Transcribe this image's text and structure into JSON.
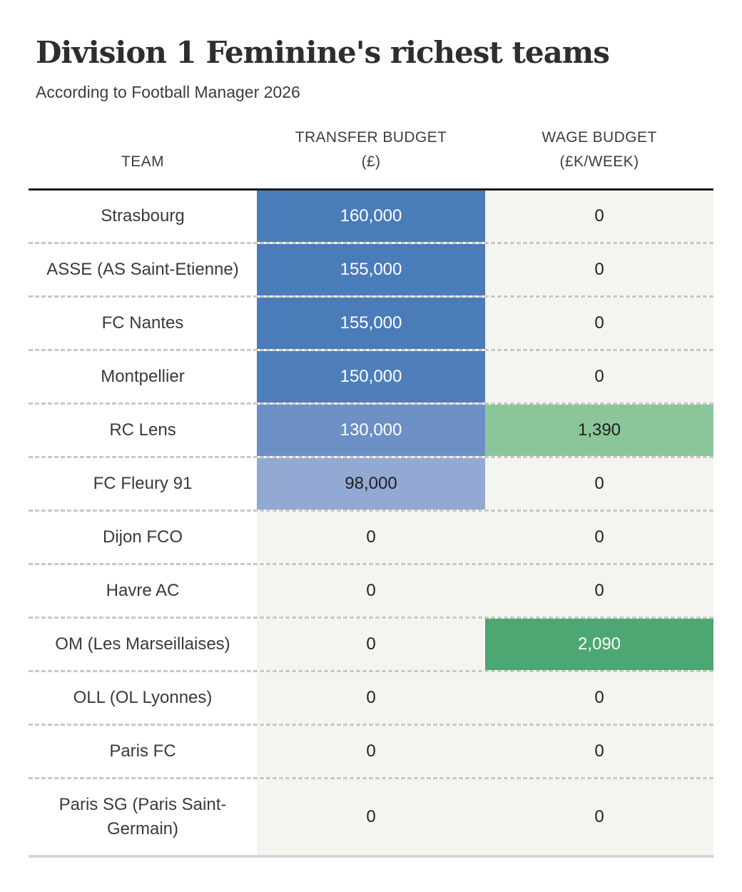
{
  "title": "Division 1 Feminine's richest teams",
  "subtitle": "According to Football Manager 2026",
  "table": {
    "headers": [
      {
        "line1": "",
        "line2": "TEAM"
      },
      {
        "line1": "TRANSFER BUDGET",
        "line2": "(£)"
      },
      {
        "line1": "WAGE BUDGET",
        "line2": "(£K/WEEK)"
      }
    ],
    "rows": [
      {
        "team": "Strasbourg",
        "transfer": {
          "value": "160,000",
          "bg": "#4a7cba",
          "color": "#ffffff"
        },
        "wage": {
          "value": "0",
          "bg": "#f5f5f0",
          "color": "#1f1f1f"
        }
      },
      {
        "team": "ASSE (AS Saint-Etienne)",
        "transfer": {
          "value": "155,000",
          "bg": "#4a7cba",
          "color": "#ffffff"
        },
        "wage": {
          "value": "0",
          "bg": "#f5f5f0",
          "color": "#1f1f1f"
        }
      },
      {
        "team": "FC Nantes",
        "transfer": {
          "value": "155,000",
          "bg": "#4a7cba",
          "color": "#ffffff"
        },
        "wage": {
          "value": "0",
          "bg": "#f5f5f0",
          "color": "#1f1f1f"
        }
      },
      {
        "team": "Montpellier",
        "transfer": {
          "value": "150,000",
          "bg": "#4e7fbb",
          "color": "#ffffff"
        },
        "wage": {
          "value": "0",
          "bg": "#f5f5f0",
          "color": "#1f1f1f"
        }
      },
      {
        "team": "RC Lens",
        "transfer": {
          "value": "130,000",
          "bg": "#6c90c6",
          "color": "#ffffff"
        },
        "wage": {
          "value": "1,390",
          "bg": "#8ac69a",
          "color": "#1f1f1f"
        }
      },
      {
        "team": "FC Fleury 91",
        "transfer": {
          "value": "98,000",
          "bg": "#92a9d3",
          "color": "#1f1f1f"
        },
        "wage": {
          "value": "0",
          "bg": "#f5f5f0",
          "color": "#1f1f1f"
        }
      },
      {
        "team": "Dijon FCO",
        "transfer": {
          "value": "0",
          "bg": "#f5f5f0",
          "color": "#1f1f1f"
        },
        "wage": {
          "value": "0",
          "bg": "#f5f5f0",
          "color": "#1f1f1f"
        }
      },
      {
        "team": "Havre AC",
        "transfer": {
          "value": "0",
          "bg": "#f5f5f0",
          "color": "#1f1f1f"
        },
        "wage": {
          "value": "0",
          "bg": "#f5f5f0",
          "color": "#1f1f1f"
        }
      },
      {
        "team": "OM (Les Marseillaises)",
        "transfer": {
          "value": "0",
          "bg": "#f5f5f0",
          "color": "#1f1f1f"
        },
        "wage": {
          "value": "2,090",
          "bg": "#4ca773",
          "color": "#ffffff"
        }
      },
      {
        "team": "OLL (OL Lyonnes)",
        "transfer": {
          "value": "0",
          "bg": "#f5f5f0",
          "color": "#1f1f1f"
        },
        "wage": {
          "value": "0",
          "bg": "#f5f5f0",
          "color": "#1f1f1f"
        }
      },
      {
        "team": "Paris FC",
        "transfer": {
          "value": "0",
          "bg": "#f5f5f0",
          "color": "#1f1f1f"
        },
        "wage": {
          "value": "0",
          "bg": "#f5f5f0",
          "color": "#1f1f1f"
        }
      },
      {
        "team": "Paris SG (Paris Saint-Germain)",
        "transfer": {
          "value": "0",
          "bg": "#f5f5f0",
          "color": "#1f1f1f"
        },
        "wage": {
          "value": "0",
          "bg": "#f5f5f0",
          "color": "#1f1f1f"
        }
      }
    ]
  },
  "colors": {
    "title_text": "#2e2e2e",
    "subtitle_text": "#3c3c3c",
    "header_text": "#3d3d3d",
    "team_text": "#3a3a3a",
    "value_text_dark": "#1f1f1f",
    "value_text_light": "#ffffff",
    "heatmap_blue_max": "#4a7cba",
    "heatmap_blue_mid": "#6c90c6",
    "heatmap_blue_low": "#92a9d3",
    "heatmap_green_max": "#4ca773",
    "heatmap_green_mid": "#8ac69a",
    "cell_zero_bg": "#f5f5f0",
    "header_rule": "#1b1b1b",
    "row_divider": "#c9c9c9",
    "bottom_rule": "#d6d6d6"
  },
  "chart_data": {
    "type": "table",
    "title": "Division 1 Feminine's richest teams",
    "subtitle": "According to Football Manager 2026",
    "columns": [
      "TEAM",
      "TRANSFER BUDGET (£)",
      "WAGE BUDGET (£K/WEEK)"
    ],
    "rows": [
      {
        "team": "Strasbourg",
        "transfer_budget_gbp": 160000,
        "wage_budget_gbp_k_per_week": 0
      },
      {
        "team": "ASSE (AS Saint-Etienne)",
        "transfer_budget_gbp": 155000,
        "wage_budget_gbp_k_per_week": 0
      },
      {
        "team": "FC Nantes",
        "transfer_budget_gbp": 155000,
        "wage_budget_gbp_k_per_week": 0
      },
      {
        "team": "Montpellier",
        "transfer_budget_gbp": 150000,
        "wage_budget_gbp_k_per_week": 0
      },
      {
        "team": "RC Lens",
        "transfer_budget_gbp": 130000,
        "wage_budget_gbp_k_per_week": 1390
      },
      {
        "team": "FC Fleury 91",
        "transfer_budget_gbp": 98000,
        "wage_budget_gbp_k_per_week": 0
      },
      {
        "team": "Dijon FCO",
        "transfer_budget_gbp": 0,
        "wage_budget_gbp_k_per_week": 0
      },
      {
        "team": "Havre AC",
        "transfer_budget_gbp": 0,
        "wage_budget_gbp_k_per_week": 0
      },
      {
        "team": "OM (Les Marseillaises)",
        "transfer_budget_gbp": 0,
        "wage_budget_gbp_k_per_week": 2090
      },
      {
        "team": "OLL (OL Lyonnes)",
        "transfer_budget_gbp": 0,
        "wage_budget_gbp_k_per_week": 0
      },
      {
        "team": "Paris FC",
        "transfer_budget_gbp": 0,
        "wage_budget_gbp_k_per_week": 0
      },
      {
        "team": "Paris SG (Paris Saint-Germain)",
        "transfer_budget_gbp": 0,
        "wage_budget_gbp_k_per_week": 0
      }
    ],
    "layout_hints": {
      "cell_shading": "heatmap per column: blue scale for transfer budget, green scale for wage budget, zero values unshaded off-white",
      "legend": "none",
      "grid": "dashed horizontal row separators, solid black rule under header"
    }
  }
}
